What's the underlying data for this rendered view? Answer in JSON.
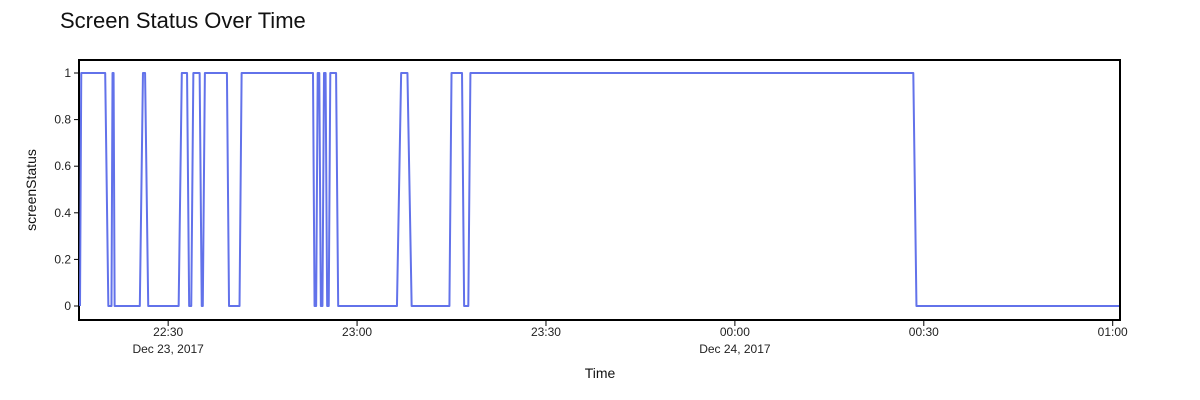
{
  "chart_data": {
    "type": "line",
    "title": "Screen Status Over Time",
    "xlabel": "Time",
    "ylabel": "screenStatus",
    "ylim": [
      0,
      1
    ],
    "yticks": [
      "0",
      "0.2",
      "0.4",
      "0.6",
      "0.8",
      "1"
    ],
    "xlim": [
      "2017-12-23T22:16",
      "2017-12-24T01:01"
    ],
    "xticks": [
      {
        "t": "2017-12-23T22:30",
        "label": "22:30",
        "sublabel": "Dec 23, 2017"
      },
      {
        "t": "2017-12-23T23:00",
        "label": "23:00",
        "sublabel": ""
      },
      {
        "t": "2017-12-23T23:30",
        "label": "23:30",
        "sublabel": ""
      },
      {
        "t": "2017-12-24T00:00",
        "label": "00:00",
        "sublabel": "Dec 24, 2017"
      },
      {
        "t": "2017-12-24T00:30",
        "label": "00:30",
        "sublabel": ""
      },
      {
        "t": "2017-12-24T01:00",
        "label": "01:00",
        "sublabel": ""
      }
    ],
    "grid": false,
    "series": [
      {
        "color": "#6272ea",
        "points": [
          [
            "2017-12-23T22:16:00",
            0
          ],
          [
            "2017-12-23T22:16:12",
            1
          ],
          [
            "2017-12-23T22:20:00",
            1
          ],
          [
            "2017-12-23T22:20:30",
            0
          ],
          [
            "2017-12-23T22:21:00",
            0
          ],
          [
            "2017-12-23T22:21:10",
            1
          ],
          [
            "2017-12-23T22:21:20",
            1
          ],
          [
            "2017-12-23T22:21:30",
            0
          ],
          [
            "2017-12-23T22:25:30",
            0
          ],
          [
            "2017-12-23T22:26:00",
            1
          ],
          [
            "2017-12-23T22:26:20",
            1
          ],
          [
            "2017-12-23T22:26:50",
            0
          ],
          [
            "2017-12-23T22:31:40",
            0
          ],
          [
            "2017-12-23T22:32:10",
            1
          ],
          [
            "2017-12-23T22:33:00",
            1
          ],
          [
            "2017-12-23T22:33:20",
            0
          ],
          [
            "2017-12-23T22:33:40",
            0
          ],
          [
            "2017-12-23T22:34:00",
            1
          ],
          [
            "2017-12-23T22:35:00",
            1
          ],
          [
            "2017-12-23T22:35:20",
            0
          ],
          [
            "2017-12-23T22:35:30",
            0
          ],
          [
            "2017-12-23T22:35:50",
            1
          ],
          [
            "2017-12-23T22:39:20",
            1
          ],
          [
            "2017-12-23T22:39:40",
            0
          ],
          [
            "2017-12-23T22:41:20",
            0
          ],
          [
            "2017-12-23T22:41:40",
            1
          ],
          [
            "2017-12-23T22:53:00",
            1
          ],
          [
            "2017-12-23T22:53:15",
            0
          ],
          [
            "2017-12-23T22:53:30",
            0
          ],
          [
            "2017-12-23T22:53:45",
            1
          ],
          [
            "2017-12-23T22:54:00",
            1
          ],
          [
            "2017-12-23T22:54:15",
            0
          ],
          [
            "2017-12-23T22:54:30",
            0
          ],
          [
            "2017-12-23T22:54:45",
            1
          ],
          [
            "2017-12-23T22:55:00",
            1
          ],
          [
            "2017-12-23T22:55:15",
            0
          ],
          [
            "2017-12-23T22:55:30",
            0
          ],
          [
            "2017-12-23T22:55:45",
            1
          ],
          [
            "2017-12-23T22:56:40",
            1
          ],
          [
            "2017-12-23T22:57:00",
            0
          ],
          [
            "2017-12-23T23:06:20",
            0
          ],
          [
            "2017-12-23T23:07:00",
            1
          ],
          [
            "2017-12-23T23:08:00",
            1
          ],
          [
            "2017-12-23T23:08:40",
            0
          ],
          [
            "2017-12-23T23:14:40",
            0
          ],
          [
            "2017-12-23T23:15:00",
            1
          ],
          [
            "2017-12-23T23:16:40",
            1
          ],
          [
            "2017-12-23T23:17:00",
            0
          ],
          [
            "2017-12-23T23:17:40",
            0
          ],
          [
            "2017-12-23T23:18:00",
            1
          ],
          [
            "2017-12-24T00:28:20",
            1
          ],
          [
            "2017-12-24T00:28:50",
            0
          ],
          [
            "2017-12-24T01:01:00",
            0
          ]
        ]
      }
    ]
  }
}
